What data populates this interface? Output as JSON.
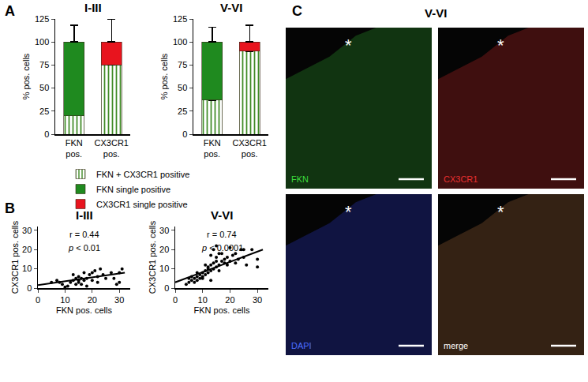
{
  "chart_data": [
    {
      "type": "bar",
      "title": "I-III",
      "stacked": true,
      "legend": "below",
      "categories": [
        "FKN pos.",
        "CX3CR1 pos."
      ],
      "y_label": "% pos. cells",
      "ylim": [
        0,
        125
      ],
      "yticks": [
        0,
        25,
        50,
        75,
        100,
        125
      ],
      "series": [
        {
          "name": "FKN + CX3CR1 positive",
          "color": "#9a4a22",
          "marker": "hatched",
          "values": [
            20,
            75
          ],
          "errors": [
            5,
            6
          ]
        },
        {
          "name": "FKN single positive",
          "color": "#1f8a1f",
          "values": [
            80,
            null
          ],
          "errors": [
            18,
            null
          ]
        },
        {
          "name": "CX3CR1 single positive",
          "color": "#e8141e",
          "values": [
            null,
            25
          ],
          "errors": [
            null,
            25
          ]
        }
      ]
    },
    {
      "type": "bar",
      "title": "V-VI",
      "stacked": true,
      "categories": [
        "FKN pos.",
        "CX3CR1 pos."
      ],
      "y_label": "% pos. cells",
      "ylim": [
        0,
        125
      ],
      "yticks": [
        0,
        25,
        50,
        75,
        100,
        125
      ],
      "series": [
        {
          "name": "FKN + CX3CR1 positive",
          "color": "#9a4a22",
          "marker": "hatched",
          "values": [
            37,
            90
          ],
          "errors": [
            8,
            5
          ]
        },
        {
          "name": "FKN single positive",
          "color": "#1f8a1f",
          "values": [
            63,
            null
          ],
          "errors": [
            16,
            null
          ]
        },
        {
          "name": "CX3CR1 single positive",
          "color": "#e8141e",
          "values": [
            null,
            10
          ],
          "errors": [
            null,
            18
          ]
        }
      ]
    },
    {
      "type": "scatter",
      "title": "I-III",
      "annotations": [
        "r = 0.44",
        "p < 0.01"
      ],
      "x_label": "FKN pos. cells",
      "y_label": "CX3CR1 pos. cells",
      "xlim": [
        0,
        34
      ],
      "xticks": [
        0,
        10,
        20,
        30
      ],
      "ylim": [
        0,
        32
      ],
      "yticks": [
        0,
        10,
        20,
        30
      ],
      "series": [
        {
          "type": "scatter",
          "marker": "circle",
          "color": "#000000",
          "x": [
            5,
            7,
            8,
            9,
            10,
            11,
            12,
            13,
            13,
            14,
            14,
            15,
            15,
            15,
            16,
            16,
            17,
            17,
            18,
            18,
            19,
            20,
            20,
            21,
            22,
            22,
            23,
            24,
            25,
            27,
            28,
            29,
            30,
            31,
            30
          ],
          "values": [
            3,
            4,
            3,
            2,
            0.5,
            1,
            3,
            4,
            7,
            2,
            5,
            3,
            4,
            6,
            2,
            5,
            8,
            4,
            5,
            1,
            7,
            4,
            8,
            9,
            3,
            6,
            10,
            7,
            5,
            8,
            5,
            2,
            3,
            10,
            8
          ]
        },
        {
          "type": "line",
          "line_style": "solid",
          "color": "#000000",
          "x": [
            0,
            32
          ],
          "values": [
            1.5,
            8
          ]
        }
      ]
    },
    {
      "type": "scatter",
      "title": "V-VI",
      "annotations": [
        "r = 0.74",
        "p < 0.0001"
      ],
      "x_label": "FKN pos. cells",
      "y_label": "CX3CR1 pos. cells",
      "xlim": [
        0,
        34
      ],
      "xticks": [
        0,
        10,
        20,
        30
      ],
      "ylim": [
        0,
        32
      ],
      "yticks": [
        0,
        10,
        20,
        30
      ],
      "series": [
        {
          "type": "scatter",
          "marker": "circle",
          "color": "#000000",
          "x": [
            4,
            5,
            5,
            6,
            7,
            7,
            8,
            8,
            9,
            9,
            10,
            10,
            10,
            11,
            11,
            12,
            12,
            12,
            13,
            13,
            13,
            14,
            14,
            14,
            15,
            15,
            15,
            15,
            16,
            16,
            17,
            17,
            18,
            18,
            19,
            20,
            20,
            21,
            22,
            22,
            23,
            24,
            25,
            26,
            28,
            30,
            30,
            8,
            6,
            11,
            16,
            19,
            25,
            13
          ],
          "values": [
            2,
            3,
            5,
            4,
            5,
            3,
            6,
            4,
            7,
            5,
            8,
            5,
            6,
            9,
            7,
            10,
            8,
            11,
            9,
            12,
            17,
            10,
            13,
            20,
            11,
            14,
            22,
            16,
            12,
            9,
            18,
            14,
            13,
            15,
            16,
            14,
            21,
            17,
            13,
            18,
            15,
            20,
            16,
            12,
            20,
            15,
            11,
            8,
            6,
            12,
            18,
            12,
            20,
            4
          ]
        },
        {
          "type": "line",
          "line_style": "solid",
          "color": "#000000",
          "x": [
            0,
            32
          ],
          "values": [
            3,
            20
          ]
        }
      ]
    }
  ],
  "panel_labels": [
    "A",
    "B",
    "C"
  ],
  "image_panel": {
    "title": "V-VI",
    "asterisk": "*",
    "images": [
      {
        "label": "FKN",
        "color": "#3ddc3d"
      },
      {
        "label": "CX3CR1",
        "color": "#e83030"
      },
      {
        "label": "DAPI",
        "color": "#4a6cff"
      },
      {
        "label": "merge",
        "color": "#ffffff"
      }
    ]
  }
}
